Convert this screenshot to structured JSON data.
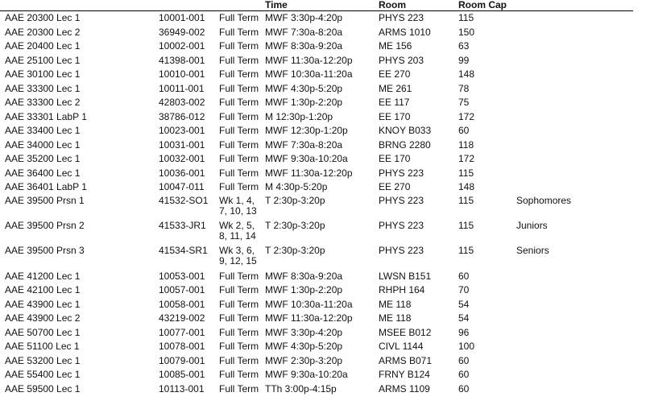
{
  "table": {
    "header": [
      "Time",
      "Room",
      "Room Cap"
    ],
    "rows": [
      [
        "AAE 20300 Lec 1",
        "10001-001",
        "Full Term",
        "MWF 3:30p-4:20p",
        "PHYS 223",
        "115"
      ],
      [
        "AAE 20300 Lec 2",
        "36949-002",
        "Full Term",
        "MWF 7:30a-8:20a",
        "ARMS 1010",
        "150"
      ],
      [
        "AAE 20400 Lec 1",
        "10002-001",
        "Full Term",
        "MWF 8:30a-9:20a",
        "ME 156",
        "63"
      ],
      [
        "AAE 25100 Lec 1",
        "41398-001",
        "Full Term",
        "MWF 11:30a-12:20p",
        "PHYS 203",
        "99"
      ],
      [
        "AAE 30100 Lec 1",
        "10010-001",
        "Full Term",
        "MWF 10:30a-11:20a",
        "EE 270",
        "148"
      ],
      [
        "AAE 33300 Lec 1",
        "10011-001",
        "Full Term",
        "MWF 4:30p-5:20p",
        "ME 261",
        "78"
      ],
      [
        "AAE 33300 Lec 2",
        "42803-002",
        "Full Term",
        "MWF 1:30p-2:20p",
        "EE 117",
        "75"
      ],
      [
        "AAE 33301 LabP 1",
        "38786-012",
        "Full Term",
        "M 12:30p-1:20p",
        "EE 170",
        "172"
      ],
      [
        "AAE 33400 Lec 1",
        "10023-001",
        "Full Term",
        "MWF 12:30p-1:20p",
        "KNOY B033",
        "60"
      ],
      [
        "AAE 34000 Lec 1",
        "10031-001",
        "Full Term",
        "MWF 7:30a-8:20a",
        "BRNG 2280",
        "118"
      ],
      [
        "AAE 35200 Lec 1",
        "10032-001",
        "Full Term",
        "MWF 9:30a-10:20a",
        "EE 170",
        "172"
      ],
      [
        "AAE 36400 Lec 1",
        "10036-001",
        "Full Term",
        "MWF 11:30a-12:20p",
        "PHYS 223",
        "115"
      ],
      [
        "AAE 36401 LabP 1",
        "10047-011",
        "Full Term",
        "M 4:30p-5:20p",
        "EE 270",
        "148"
      ],
      [
        "AAE 39500 Prsn 1",
        "41532-SO1",
        "Wk 1, 4, 7, 10, 13",
        "T 2:30p-3:20p",
        "PHYS 223",
        "115",
        "Sophomores"
      ],
      [
        "AAE 39500 Prsn 2",
        "41533-JR1",
        "Wk 2, 5, 8, 11, 14",
        "T 2:30p-3:20p",
        "PHYS 223",
        "115",
        "Juniors"
      ],
      [
        "AAE 39500 Prsn 3",
        "41534-SR1",
        "Wk 3, 6, 9, 12, 15",
        "T 2:30p-3:20p",
        "PHYS 223",
        "115",
        "Seniors"
      ],
      [
        "AAE 41200 Lec 1",
        "10053-001",
        "Full Term",
        "MWF 8:30a-9:20a",
        "LWSN B151",
        "60"
      ],
      [
        "AAE 42100 Lec 1",
        "10057-001",
        "Full Term",
        "MWF 1:30p-2:20p",
        "RHPH 164",
        "70"
      ],
      [
        "AAE 43900 Lec 1",
        "10058-001",
        "Full Term",
        "MWF 10:30a-11:20a",
        "ME 118",
        "54"
      ],
      [
        "AAE 43900 Lec 2",
        "43219-002",
        "Full Term",
        "MWF 11:30a-12:20p",
        "ME 118",
        "54"
      ],
      [
        "AAE 50700 Lec 1",
        "10077-001",
        "Full Term",
        "MWF 3:30p-4:20p",
        "MSEE B012",
        "96"
      ],
      [
        "AAE 51100 Lec 1",
        "10078-001",
        "Full Term",
        "MWF 4:30p-5:20p",
        "CIVL 1144",
        "100"
      ],
      [
        "AAE 53200 Lec 1",
        "10079-001",
        "Full Term",
        "MWF 2:30p-3:20p",
        "ARMS B071",
        "60"
      ],
      [
        "AAE 55400 Lec 1",
        "10085-001",
        "Full Term",
        "MWF 9:30a-10:20a",
        "FRNY B124",
        "60"
      ],
      [
        "AAE 59500 Lec 1",
        "10113-001",
        "Full Term",
        "TTh 3:00p-4:15p",
        "ARMS 1109",
        "60"
      ]
    ]
  }
}
